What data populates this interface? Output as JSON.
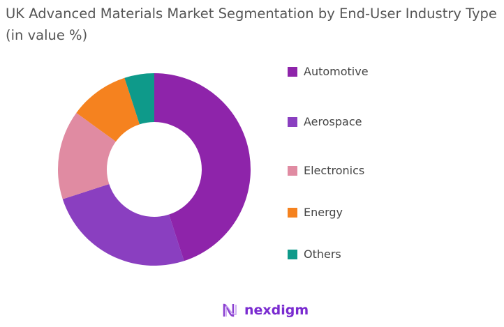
{
  "chart_data": {
    "type": "pie",
    "donut": true,
    "title": "UK Advanced Materials Market Segmentation by End-User Industry Type (in value %)",
    "categories": [
      "Automotive",
      "Aerospace",
      "Electronics",
      "Energy",
      "Others"
    ],
    "values": [
      45,
      25,
      15,
      10,
      5
    ],
    "colors": [
      "#8E24AA",
      "#8A3FC0",
      "#E08BA2",
      "#F5821F",
      "#0E9A8A"
    ],
    "legend": "right"
  },
  "logo": "nexdigm"
}
